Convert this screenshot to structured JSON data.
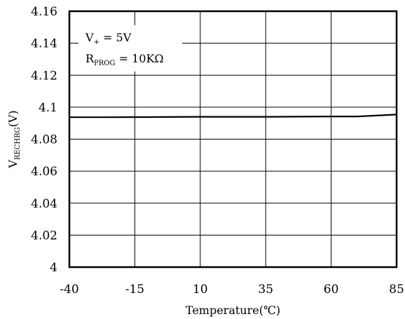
{
  "chart_data": {
    "type": "line",
    "title": "",
    "xlabel": "Temperature(℃)",
    "ylabel": {
      "main": "V",
      "sub": "RECHRG",
      "unit": "(V)"
    },
    "xlim": [
      -40,
      85
    ],
    "ylim": [
      4.0,
      4.16
    ],
    "x_ticks": [
      -40,
      -15,
      10,
      35,
      60,
      85
    ],
    "x_tick_labels": [
      "-40",
      "-15",
      "10",
      "35",
      "60",
      "85"
    ],
    "y_ticks": [
      4.0,
      4.02,
      4.04,
      4.06,
      4.08,
      4.1,
      4.12,
      4.14,
      4.16
    ],
    "y_tick_labels": [
      "4",
      "4.02",
      "4.04",
      "4.06",
      "4.08",
      "4.1",
      "4.12",
      "4.14",
      "4.16"
    ],
    "grid": true,
    "series": [
      {
        "x": [
          -40,
          -25,
          -10,
          10,
          35,
          60,
          70,
          85
        ],
        "y": [
          4.0937,
          4.0937,
          4.0938,
          4.094,
          4.094,
          4.0942,
          4.0942,
          4.0954
        ]
      }
    ],
    "annotations": [
      {
        "main": "V",
        "sub": "+",
        "rest": " = 5V"
      },
      {
        "main": "R",
        "sub": "PROG",
        "rest": " = 10KΩ"
      }
    ],
    "colors": {
      "line": "#000000",
      "grid": "#000000",
      "frame": "#000000"
    }
  }
}
